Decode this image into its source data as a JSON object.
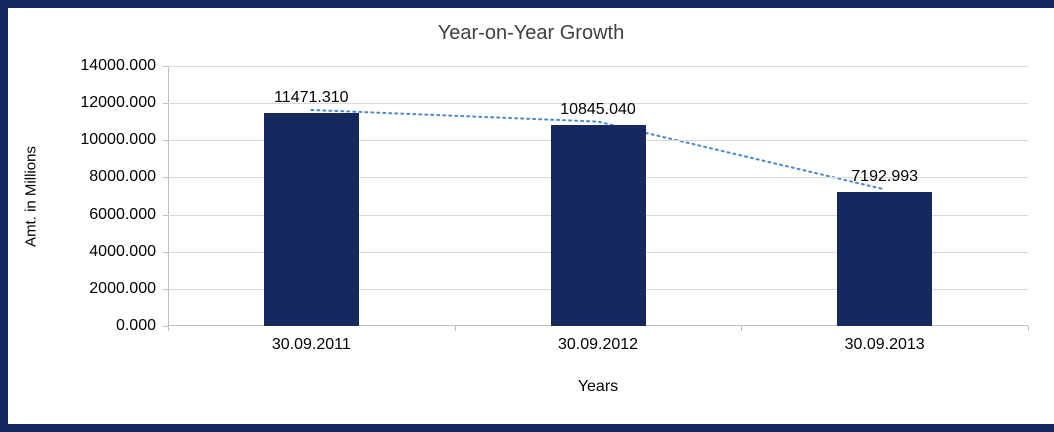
{
  "chart_data": {
    "type": "bar",
    "title": "Year-on-Year Growth",
    "categories": [
      "30.09.2011",
      "30.09.2012",
      "30.09.2013"
    ],
    "values": [
      11471.31,
      10845.04,
      7192.993
    ],
    "data_labels": [
      "11471.310",
      "10845.040",
      "7192.993"
    ],
    "xlabel": "Years",
    "ylabel": "Amt. in Millions",
    "ylim": [
      0,
      14000
    ],
    "ytick_step": 2000,
    "ytick_labels": [
      "0.000",
      "2000.000",
      "4000.000",
      "6000.000",
      "8000.000",
      "10000.000",
      "12000.000",
      "14000.000"
    ],
    "grid": true,
    "legend": "none",
    "bar_color": "#16295F",
    "gridline_color": "#D9D9D9",
    "axis_color": "#BFBFBF",
    "title_color": "#404040",
    "trendline": {
      "color": "#4A89C8",
      "style": "dotted"
    }
  },
  "frame": {
    "border_color": "#16295F"
  }
}
